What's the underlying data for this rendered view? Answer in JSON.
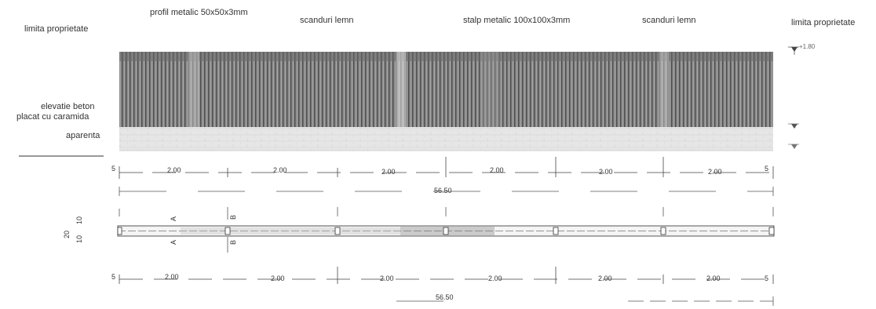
{
  "labels": {
    "property_limit_left": "limita proprietate",
    "property_limit_right": "limita proprietate",
    "metal_profile": "profil metalic 50x50x3mm",
    "wood_planks_1": "scanduri lemn",
    "metal_post": "stalp metalic 100x100x3mm",
    "wood_planks_2": "scanduri lemn",
    "concrete_line1": "elevatie beton",
    "concrete_line2": "placat cu caramida",
    "concrete_line3": "aparenta"
  },
  "levels": {
    "top": "+1.80"
  },
  "dimensions_top": {
    "start": "5",
    "segments": [
      "2.00",
      "2.00",
      "2.00",
      "2.00",
      "2.00",
      "2.00"
    ],
    "end": "5",
    "total": "56.50"
  },
  "dimensions_bottom": {
    "start": "5",
    "segments": [
      "2.00",
      "2.00",
      "2.00",
      "2.00",
      "2.00",
      "2.00"
    ],
    "end": "5",
    "total": "56.50"
  },
  "section_markers": [
    "A",
    "B"
  ],
  "side_dims": [
    "20",
    "10",
    "10"
  ]
}
